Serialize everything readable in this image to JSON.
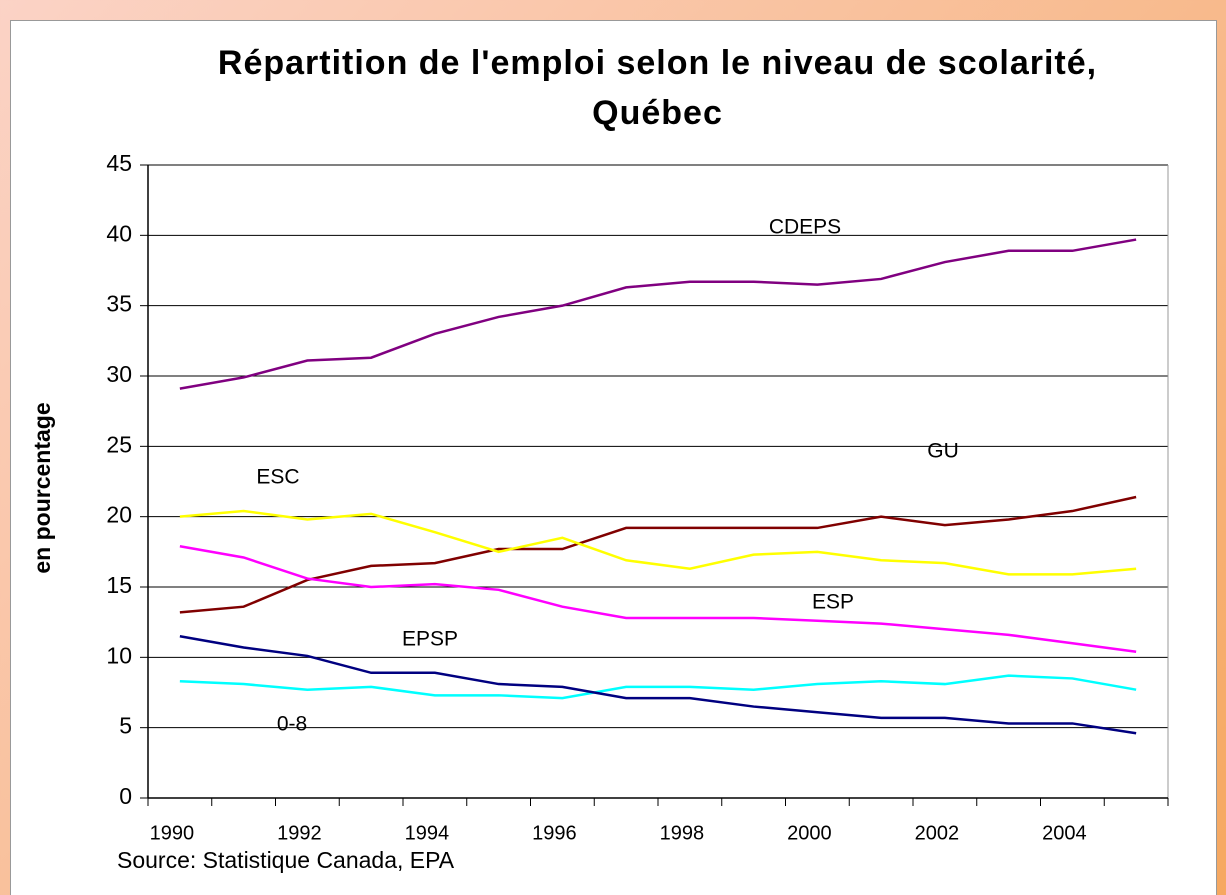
{
  "chart_data": {
    "type": "line",
    "title": "Répartition de l'emploi selon le niveau de scolarité, Québec",
    "y_label": "en pourcentage",
    "source": "Source: Statistique Canada, EPA",
    "categories": [
      "1990",
      null,
      "1992",
      null,
      "1994",
      null,
      "1996",
      null,
      "1998",
      null,
      "2000",
      null,
      "2002",
      null,
      "2004",
      null
    ],
    "ylim": [
      0,
      45
    ],
    "yticks": [
      0,
      5,
      10,
      15,
      20,
      25,
      30,
      35,
      40,
      45
    ],
    "grid": true,
    "series": [
      {
        "name": "CDEPS",
        "color": "#800080",
        "values": [
          29.1,
          29.9,
          31.1,
          31.3,
          33.0,
          34.2,
          35.0,
          36.3,
          36.7,
          36.7,
          36.5,
          36.9,
          38.1,
          38.9,
          38.9,
          39.7
        ]
      },
      {
        "name": "GU",
        "color": "#800000",
        "values": [
          13.2,
          13.6,
          15.5,
          16.5,
          16.7,
          17.7,
          17.7,
          19.2,
          19.2,
          19.2,
          19.2,
          20.0,
          19.4,
          19.8,
          20.4,
          21.4
        ]
      },
      {
        "name": "ESC",
        "color": "#ffff00",
        "values": [
          20.0,
          20.4,
          19.8,
          20.2,
          18.9,
          17.5,
          18.5,
          16.9,
          16.3,
          17.3,
          17.5,
          16.9,
          16.7,
          15.9,
          15.9,
          16.3
        ]
      },
      {
        "name": "ESP",
        "color": "#ff00ff",
        "values": [
          17.9,
          17.1,
          15.6,
          15.0,
          15.2,
          14.8,
          13.6,
          12.8,
          12.8,
          12.8,
          12.6,
          12.4,
          12.0,
          11.6,
          11.0,
          10.4
        ]
      },
      {
        "name": "EPSP",
        "color": "#00ffff",
        "values": [
          8.3,
          8.1,
          7.7,
          7.9,
          7.3,
          7.3,
          7.1,
          7.9,
          7.9,
          7.7,
          8.1,
          8.3,
          8.1,
          8.7,
          8.5,
          7.7
        ]
      },
      {
        "name": "0-8",
        "color": "#000080",
        "values": [
          11.5,
          10.7,
          10.1,
          8.9,
          8.9,
          8.1,
          7.9,
          7.1,
          7.1,
          6.5,
          6.1,
          5.7,
          5.7,
          5.3,
          5.3,
          4.6
        ]
      }
    ]
  }
}
